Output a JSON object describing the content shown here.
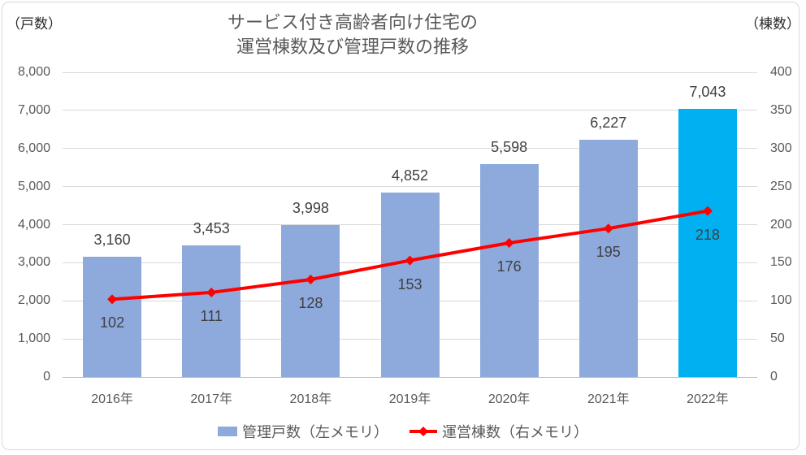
{
  "title": {
    "line1": "サービス付き高齢者向け住宅の",
    "line2": "運営棟数及び管理戸数の推移"
  },
  "left_axis_caption": "（戸数）",
  "right_axis_caption": "（棟数）",
  "legend": [
    {
      "label": "管理戸数（左メモリ）",
      "color": "#8EAADC",
      "swatch": "bar-square"
    },
    {
      "label": "運営棟数（右メモリ）",
      "color": "#FF0000",
      "swatch": "line-diamond"
    }
  ],
  "colors": {
    "bar_blue": "#8EAADC",
    "bar_highlight_cyan": "#00B0F0",
    "line_red": "#FF0000",
    "gridline": "#D9D9D9",
    "axis_baseline": "#BFBFBF",
    "axis_text": "#595959",
    "data_label_text": "#404040",
    "title_text": "#595959",
    "chart_border": "#D9D9D9"
  },
  "chart_data": {
    "type": "bar",
    "subtype": "bar+line combo, dual axis",
    "title": "サービス付き高齢者向け住宅の運営棟数及び管理戸数の推移",
    "categories": [
      "2016年",
      "2017年",
      "2018年",
      "2019年",
      "2020年",
      "2021年",
      "2022年"
    ],
    "series": [
      {
        "name": "管理戸数（左メモリ）",
        "type": "bar",
        "axis": "left",
        "values": [
          3160,
          3453,
          3998,
          4852,
          5598,
          6227,
          7043
        ],
        "labels": [
          "3,160",
          "3,453",
          "3,998",
          "4,852",
          "5,598",
          "6,227",
          "7,043"
        ],
        "bar_colors": [
          "#8EAADC",
          "#8EAADC",
          "#8EAADC",
          "#8EAADC",
          "#8EAADC",
          "#8EAADC",
          "#00B0F0"
        ]
      },
      {
        "name": "運営棟数（右メモリ）",
        "type": "line",
        "axis": "right",
        "marker": "diamond",
        "color": "#FF0000",
        "values": [
          102,
          111,
          128,
          153,
          176,
          195,
          218
        ],
        "labels": [
          "102",
          "111",
          "128",
          "153",
          "176",
          "195",
          "218"
        ]
      }
    ],
    "left_axis": {
      "caption": "（戸数）",
      "min": 0,
      "max": 8000,
      "step": 1000,
      "ticks": [
        "8,000",
        "7,000",
        "6,000",
        "5,000",
        "4,000",
        "3,000",
        "2,000",
        "1,000",
        "0"
      ]
    },
    "right_axis": {
      "caption": "（棟数）",
      "min": 0,
      "max": 400,
      "step": 50,
      "ticks": [
        "400",
        "350",
        "300",
        "250",
        "200",
        "150",
        "100",
        "50",
        "0"
      ]
    },
    "grid": true,
    "legend_position": "bottom"
  }
}
